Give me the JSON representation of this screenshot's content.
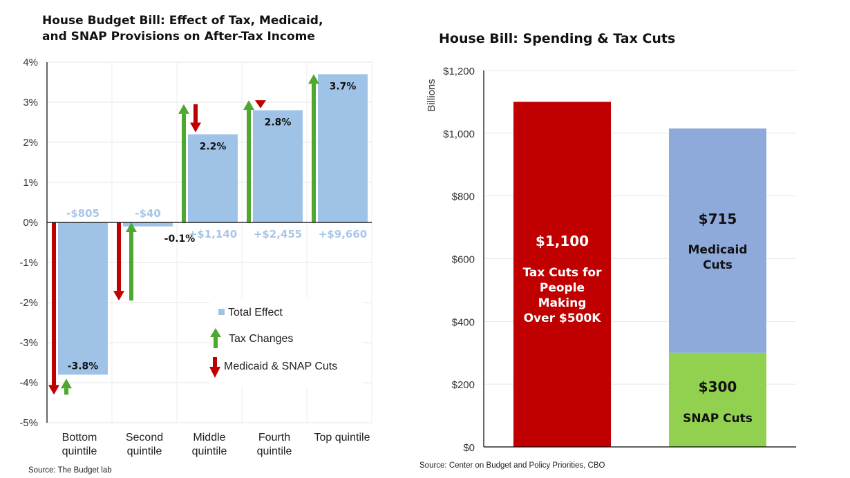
{
  "chart_data": [
    {
      "type": "bar",
      "title": [
        "House Budget Bill: Effect of Tax, Medicaid,",
        "and SNAP Provisions on After-Tax Income"
      ],
      "xlabel": "",
      "ylabel": "",
      "ylim": [
        -5,
        4
      ],
      "yticks": [
        4,
        3,
        2,
        1,
        0,
        -1,
        -2,
        -3,
        -4,
        -5
      ],
      "ytick_labels": [
        "4%",
        "3%",
        "2%",
        "1%",
        "0%",
        "-1%",
        "-2%",
        "-3%",
        "-4%",
        "-5%"
      ],
      "grid": true,
      "categories": [
        [
          "Bottom",
          "quintile"
        ],
        [
          "Second",
          "quintile"
        ],
        [
          "Middle",
          "quintile"
        ],
        [
          "Fourth",
          "quintile"
        ],
        [
          "Top quintile"
        ]
      ],
      "series": [
        {
          "name": "Total Effect",
          "color": "#9fc3e7",
          "values": [
            -3.8,
            -0.1,
            2.2,
            2.8,
            3.7
          ],
          "value_labels": [
            "-3.8%",
            "-0.1%",
            "2.2%",
            "2.8%",
            "3.7%"
          ]
        },
        {
          "name": "Tax Changes",
          "color": "#4ea72e",
          "arrows": [
            {
              "from": -4.3,
              "to": -3.9
            },
            {
              "from": -1.95,
              "to": 0
            },
            {
              "from": 0,
              "to": 2.95
            },
            {
              "from": 0,
              "to": 3.05
            },
            {
              "from": 0,
              "to": 3.7
            }
          ]
        },
        {
          "name": "Medicaid & SNAP Cuts",
          "color": "#c00000",
          "arrows": [
            {
              "from": 0,
              "to": -4.3
            },
            {
              "from": 0,
              "to": -1.95
            },
            {
              "from": 2.95,
              "to": 2.25
            },
            {
              "from": 3.05,
              "to": 2.85
            },
            null
          ]
        }
      ],
      "dollar_annotations": [
        "-$805",
        "-$40",
        "+$1,140",
        "+$2,455",
        "+$9,660"
      ],
      "annotation_color": "#a9c6e6",
      "legend": {
        "position": "bottom-right-inside",
        "entries": [
          "Total Effect",
          "Tax Changes",
          "Medicaid & SNAP Cuts"
        ]
      },
      "source": "Source: The Budget lab"
    },
    {
      "type": "bar",
      "stacked": true,
      "title": "House Bill: Spending & Tax Cuts",
      "xlabel": "",
      "ylabel": "Billions",
      "ylim": [
        0,
        1200
      ],
      "yticks": [
        0,
        200,
        400,
        600,
        800,
        1000,
        1200
      ],
      "ytick_labels": [
        "$0",
        "$200",
        "$400",
        "$600",
        "$800",
        "$1,000",
        "$1,200"
      ],
      "grid": true,
      "bars": [
        {
          "segments": [
            {
              "name": "Tax Cuts for People Making Over $500K",
              "value": 1100,
              "color": "#c00000",
              "value_label": "$1,100",
              "label_lines": [
                "Tax Cuts for",
                "People",
                "Making",
                "Over $500K"
              ],
              "text_color": "#ffffff"
            }
          ]
        },
        {
          "segments": [
            {
              "name": "SNAP Cuts",
              "value": 300,
              "color": "#92d050",
              "value_label": "$300",
              "label_lines": [
                "SNAP Cuts"
              ],
              "text_color": "#111111"
            },
            {
              "name": "Medicaid Cuts",
              "value": 715,
              "color": "#8eaadb",
              "value_label": "$715",
              "label_lines": [
                "Medicaid",
                "Cuts"
              ],
              "text_color": "#111111"
            }
          ]
        }
      ],
      "source": "Source: Center on Budget and Policy Priorities, CBO"
    }
  ]
}
